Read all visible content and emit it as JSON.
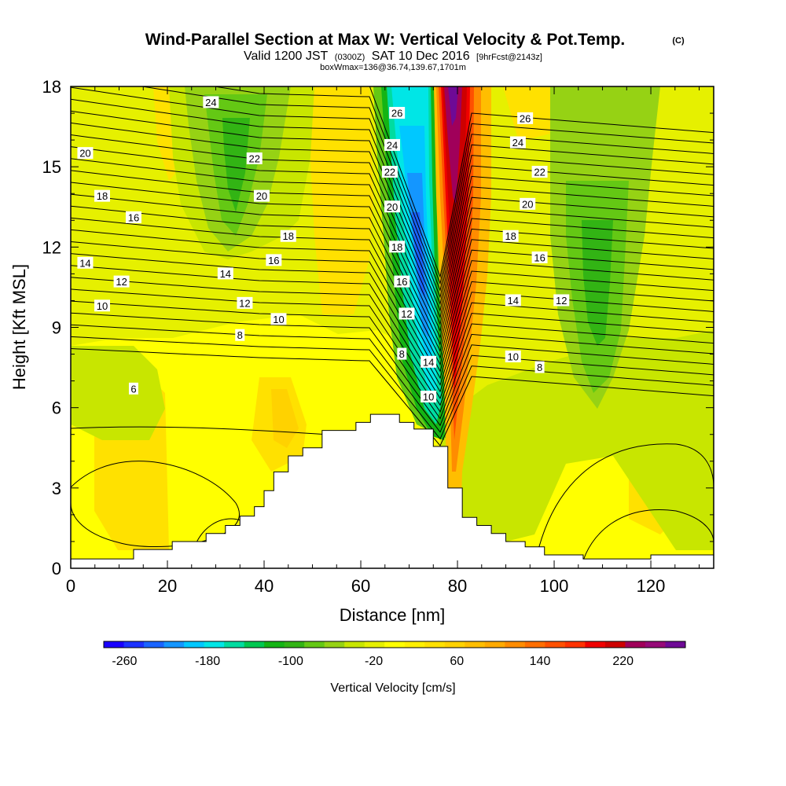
{
  "chart_data": {
    "type": "heatmap",
    "title": "Wind-Parallel Section at Max W: Vertical Velocity & Pot.Temp.",
    "copyright": "(C)",
    "subtitle": {
      "valid_prefix": "Valid 1200 JST",
      "utc": "(0300Z)",
      "date": "SAT 10 Dec 2016",
      "forecast": "[9hrFcst@2143z]"
    },
    "box_info": "boxWmax=136@36.74,139.67,1701m",
    "xlabel": "Distance [nm]",
    "ylabel": "Height [Kft MSL]",
    "xlim": [
      0,
      133
    ],
    "ylim": [
      0,
      18
    ],
    "x_ticks": [
      0,
      20,
      40,
      60,
      80,
      100,
      120
    ],
    "y_ticks": [
      0,
      3,
      6,
      9,
      12,
      15,
      18
    ],
    "colorbar": {
      "label": "Vertical Velocity [cm/s]",
      "tick_labels": [
        "-260",
        "-180",
        "-100",
        "-20",
        "60",
        "140",
        "220"
      ],
      "tick_values": [
        -260,
        -180,
        -100,
        -20,
        60,
        140,
        220
      ],
      "min": -280,
      "max": 280,
      "colors": [
        "#1a00ff",
        "#1c32ff",
        "#1a64ff",
        "#1496ff",
        "#00c8ff",
        "#00e6e6",
        "#00dca0",
        "#00c850",
        "#14b414",
        "#32b414",
        "#64c814",
        "#96d214",
        "#c8e600",
        "#e6f000",
        "#ffff00",
        "#fff000",
        "#ffe100",
        "#ffd200",
        "#ffbe00",
        "#ffaa00",
        "#ff8c00",
        "#ff6e00",
        "#ff5000",
        "#ff3200",
        "#f00000",
        "#cd0000",
        "#a0005a",
        "#960a78",
        "#6e0a96"
      ]
    },
    "terrain_profile_nm_kft": [
      [
        0,
        0.35
      ],
      [
        12,
        0.35
      ],
      [
        13,
        0.7
      ],
      [
        20,
        0.7
      ],
      [
        21,
        1.0
      ],
      [
        27,
        1.0
      ],
      [
        28,
        1.3
      ],
      [
        32,
        1.6
      ],
      [
        35,
        1.95
      ],
      [
        38,
        2.3
      ],
      [
        40,
        2.9
      ],
      [
        42,
        3.6
      ],
      [
        45,
        4.2
      ],
      [
        48,
        4.5
      ],
      [
        52,
        5.15
      ],
      [
        58,
        5.15
      ],
      [
        59,
        5.45
      ],
      [
        62,
        5.75
      ],
      [
        67,
        5.75
      ],
      [
        68,
        5.45
      ],
      [
        71,
        5.2
      ],
      [
        75,
        4.55
      ],
      [
        78,
        3.0
      ],
      [
        81,
        1.9
      ],
      [
        84,
        1.6
      ],
      [
        87,
        1.3
      ],
      [
        90,
        1.0
      ],
      [
        94,
        0.8
      ],
      [
        98,
        0.5
      ],
      [
        106,
        0.35
      ],
      [
        119,
        0.35
      ],
      [
        120,
        0.5
      ],
      [
        133,
        0.5
      ]
    ],
    "theta_contour_labels": [
      {
        "text": "24",
        "x": 29,
        "y": 17.4
      },
      {
        "text": "20",
        "x": 3,
        "y": 15.5
      },
      {
        "text": "22",
        "x": 38,
        "y": 15.3
      },
      {
        "text": "18",
        "x": 6.5,
        "y": 13.9
      },
      {
        "text": "20",
        "x": 39.5,
        "y": 13.9
      },
      {
        "text": "16",
        "x": 13,
        "y": 13.1
      },
      {
        "text": "18",
        "x": 45,
        "y": 12.4
      },
      {
        "text": "14",
        "x": 3,
        "y": 11.4
      },
      {
        "text": "16",
        "x": 42,
        "y": 11.5
      },
      {
        "text": "12",
        "x": 10.5,
        "y": 10.7
      },
      {
        "text": "14",
        "x": 32,
        "y": 11.0
      },
      {
        "text": "10",
        "x": 6.5,
        "y": 9.8
      },
      {
        "text": "12",
        "x": 36,
        "y": 9.9
      },
      {
        "text": "10",
        "x": 43,
        "y": 9.3
      },
      {
        "text": "8",
        "x": 35,
        "y": 8.7
      },
      {
        "text": "6",
        "x": 13,
        "y": 6.7
      },
      {
        "text": "26",
        "x": 67.5,
        "y": 17.0
      },
      {
        "text": "24",
        "x": 66.5,
        "y": 15.8
      },
      {
        "text": "22",
        "x": 66,
        "y": 14.8
      },
      {
        "text": "20",
        "x": 66.5,
        "y": 13.5
      },
      {
        "text": "18",
        "x": 67.5,
        "y": 12.0
      },
      {
        "text": "16",
        "x": 68.5,
        "y": 10.7
      },
      {
        "text": "12",
        "x": 69.5,
        "y": 9.5
      },
      {
        "text": "8",
        "x": 68.5,
        "y": 8.0
      },
      {
        "text": "14",
        "x": 74,
        "y": 7.7
      },
      {
        "text": "10",
        "x": 74,
        "y": 6.4
      },
      {
        "text": "26",
        "x": 94,
        "y": 16.8
      },
      {
        "text": "24",
        "x": 92.5,
        "y": 15.9
      },
      {
        "text": "22",
        "x": 97,
        "y": 14.8
      },
      {
        "text": "20",
        "x": 94.5,
        "y": 13.6
      },
      {
        "text": "18",
        "x": 91,
        "y": 12.4
      },
      {
        "text": "16",
        "x": 97,
        "y": 11.6
      },
      {
        "text": "14",
        "x": 91.5,
        "y": 10.0
      },
      {
        "text": "12",
        "x": 101.5,
        "y": 10.0
      },
      {
        "text": "10",
        "x": 91.5,
        "y": 7.9
      },
      {
        "text": "8",
        "x": 97,
        "y": 7.5
      }
    ]
  }
}
